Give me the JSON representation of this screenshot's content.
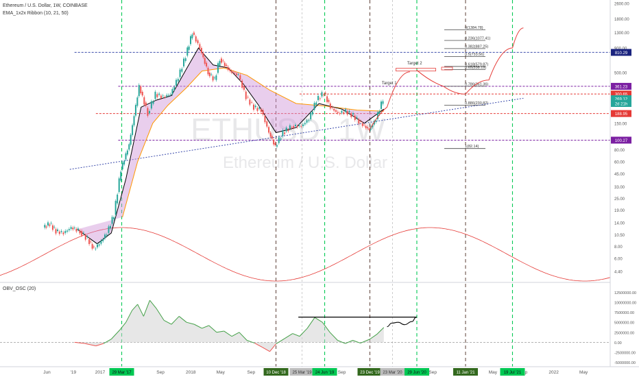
{
  "header": {
    "symbol_title": "Ethereum / U.S. Dollar, 1W, COINBASE",
    "ribbon_label": "EMA_1x2x Ribbon (10, 21, 50)",
    "watermark_ticker": "ETHUSD, 1W",
    "watermark_name": "Ethereum / U.S. Dollar",
    "osc_label": "OBV_OSC (20)"
  },
  "colors": {
    "candle_up": "#26a69a",
    "candle_down": "#ef5350",
    "ema_fast": "#000000",
    "ema_slow": "#ff9800",
    "ribbon_fill": "#ce93d8",
    "blue_line": "#3949ab",
    "red_line": "#e53935",
    "purple_line": "#7b1fa2",
    "green_vline": "#00c853",
    "dark_vline": "#5d4037",
    "sine": "#e53935",
    "osc_line": "#43a047"
  },
  "chart_data": [
    {
      "type": "line",
      "title": "Ethereum / U.S. Dollar, 1W, COINBASE",
      "scale": "log",
      "y_ticks": [
        2600,
        1800,
        1300,
        900,
        500,
        350,
        250,
        150,
        100,
        80,
        60,
        45,
        33,
        25,
        19,
        14,
        10.5,
        8,
        6,
        4.4
      ],
      "y_tick_labels": [
        "2600.00",
        "1800.00",
        "1300.00",
        "900.00",
        "500.00",
        "350.00",
        "250.00",
        "150.00",
        "100.00",
        "80.00",
        "60.00",
        "45.00",
        "33.00",
        "25.00",
        "19.00",
        "14.00",
        "10.50",
        "8.00",
        "6.00",
        "4.40"
      ],
      "x_labels": [
        {
          "label": "Jun",
          "date": "2016-06-01"
        },
        {
          "label": "'19",
          "date": "2016-09-15"
        },
        {
          "label": "2017",
          "date": "2017-01-01"
        },
        {
          "label": "Sep",
          "date": "2017-09-01"
        },
        {
          "label": "2018",
          "date": "2018-01-01"
        },
        {
          "label": "May",
          "date": "2018-05-01"
        },
        {
          "label": "Sep",
          "date": "2018-09-01"
        },
        {
          "label": "Sep",
          "date": "2019-09-01"
        },
        {
          "label": "Sep",
          "date": "2020-09-01"
        },
        {
          "label": "2021",
          "date": "2021-01-01"
        },
        {
          "label": "May",
          "date": "2021-05-01"
        },
        {
          "label": "Sep",
          "date": "2021-09-01"
        },
        {
          "label": "2022",
          "date": "2022-01-01"
        },
        {
          "label": "May",
          "date": "2022-05-01"
        }
      ],
      "date_badges": [
        {
          "label": "29 Mar '17",
          "date": "2017-03-29",
          "color": "#00c853"
        },
        {
          "label": "10 Dec '18",
          "date": "2018-12-10",
          "color": "#33691e"
        },
        {
          "label": "25 Mar '19",
          "date": "2019-03-25",
          "color": "#bdbdbd"
        },
        {
          "label": "24 Jun '19",
          "date": "2019-06-24",
          "color": "#00c853"
        },
        {
          "label": "23 Dec '19",
          "date": "2019-12-23",
          "color": "#33691e"
        },
        {
          "label": "23 Mar '20",
          "date": "2020-03-23",
          "color": "#bdbdbd"
        },
        {
          "label": "29 Jun '20",
          "date": "2020-06-29",
          "color": "#00c853"
        },
        {
          "label": "11 Jan '21",
          "date": "2021-01-11",
          "color": "#33691e"
        },
        {
          "label": "19 Jul '21",
          "date": "2021-07-19",
          "color": "#00c853"
        }
      ],
      "price_badges": [
        {
          "label": "810.29",
          "value": 810.29,
          "color": "#1a237e"
        },
        {
          "label": "361.23",
          "value": 361.23,
          "color": "#7b1fa2"
        },
        {
          "label": "300.65",
          "value": 300.65,
          "color": "#e53935"
        },
        {
          "label": "269.12",
          "value": 269.12,
          "color": "#26a69a"
        },
        {
          "label": "2d 21h",
          "value": 240,
          "color": "#26a69a"
        },
        {
          "label": "188.95",
          "value": 188.95,
          "color": "#e53935"
        },
        {
          "label": "100.27",
          "value": 100.27,
          "color": "#7b1fa2"
        }
      ],
      "horizontal_levels": [
        {
          "value": 810.29,
          "color": "#3949ab",
          "from": "2016-09-20"
        },
        {
          "value": 361.23,
          "color": "#7b1fa2",
          "from": "2017-03-15"
        },
        {
          "value": 300.65,
          "color": "#e53935",
          "from": "2019-03-15"
        },
        {
          "value": 188.95,
          "color": "#e53935",
          "from": "2016-12-15"
        },
        {
          "value": 100.27,
          "color": "#7b1fa2",
          "from": "2017-03-15"
        }
      ],
      "fib_levels": [
        {
          "label": "0(1384.78)",
          "value": 1384.78
        },
        {
          "label": "0.236(1077.41)",
          "value": 1077.41
        },
        {
          "label": "0.382(887.25)",
          "value": 887.25
        },
        {
          "label": "0.5(733.56)",
          "value": 733.56
        },
        {
          "label": "0.618(579.87)",
          "value": 579.87
        },
        {
          "label": "0.65(538.19)",
          "value": 538.19
        },
        {
          "label": "0.786(361.36)",
          "value": 361.36
        },
        {
          "label": "0.886(230.82)",
          "value": 230.82
        },
        {
          "label": "1(82.14)",
          "value": 82.14
        }
      ],
      "annotations": [
        {
          "label": "Target 1",
          "date": "2020-03-10",
          "value": 378
        },
        {
          "label": "Target 2",
          "date": "2020-06-20",
          "value": 610
        }
      ],
      "price": [
        {
          "date": "2016-05-20",
          "value": 12.5
        },
        {
          "date": "2016-06-15",
          "value": 13.8
        },
        {
          "date": "2016-07-10",
          "value": 11.5
        },
        {
          "date": "2016-08-10",
          "value": 11.0
        },
        {
          "date": "2016-09-10",
          "value": 12.5
        },
        {
          "date": "2016-10-15",
          "value": 11.5
        },
        {
          "date": "2016-11-15",
          "value": 9.5
        },
        {
          "date": "2016-12-10",
          "value": 7.5
        },
        {
          "date": "2017-01-01",
          "value": 8.5
        },
        {
          "date": "2017-02-01",
          "value": 11.0
        },
        {
          "date": "2017-03-01",
          "value": 17.0
        },
        {
          "date": "2017-03-29",
          "value": 50.0
        },
        {
          "date": "2017-05-01",
          "value": 90.0
        },
        {
          "date": "2017-06-10",
          "value": 360.0
        },
        {
          "date": "2017-07-15",
          "value": 190.0
        },
        {
          "date": "2017-08-15",
          "value": 300.0
        },
        {
          "date": "2017-09-15",
          "value": 280.0
        },
        {
          "date": "2017-10-15",
          "value": 300.0
        },
        {
          "date": "2017-11-15",
          "value": 450.0
        },
        {
          "date": "2017-12-15",
          "value": 750.0
        },
        {
          "date": "2018-01-10",
          "value": 1300.0
        },
        {
          "date": "2018-02-10",
          "value": 900.0
        },
        {
          "date": "2018-03-15",
          "value": 500.0
        },
        {
          "date": "2018-04-10",
          "value": 420.0
        },
        {
          "date": "2018-05-01",
          "value": 700.0
        },
        {
          "date": "2018-06-10",
          "value": 520.0
        },
        {
          "date": "2018-07-15",
          "value": 470.0
        },
        {
          "date": "2018-08-15",
          "value": 280.0
        },
        {
          "date": "2018-09-15",
          "value": 220.0
        },
        {
          "date": "2018-10-15",
          "value": 205.0
        },
        {
          "date": "2018-11-15",
          "value": 120.0
        },
        {
          "date": "2018-12-10",
          "value": 86.0
        },
        {
          "date": "2019-01-10",
          "value": 120.0
        },
        {
          "date": "2019-02-15",
          "value": 140.0
        },
        {
          "date": "2019-03-25",
          "value": 140.0
        },
        {
          "date": "2019-04-25",
          "value": 165.0
        },
        {
          "date": "2019-05-25",
          "value": 260.0
        },
        {
          "date": "2019-06-24",
          "value": 310.0
        },
        {
          "date": "2019-07-20",
          "value": 220.0
        },
        {
          "date": "2019-08-20",
          "value": 190.0
        },
        {
          "date": "2019-09-20",
          "value": 200.0
        },
        {
          "date": "2019-10-20",
          "value": 180.0
        },
        {
          "date": "2019-11-20",
          "value": 150.0
        },
        {
          "date": "2019-12-23",
          "value": 128.0
        },
        {
          "date": "2020-01-20",
          "value": 165.0
        },
        {
          "date": "2020-02-17",
          "value": 269.12
        }
      ],
      "ema_fast": [
        {
          "date": "2016-10-01",
          "value": 12.0
        },
        {
          "date": "2016-12-20",
          "value": 8.5
        },
        {
          "date": "2017-02-15",
          "value": 11.0
        },
        {
          "date": "2017-04-15",
          "value": 40.0
        },
        {
          "date": "2017-06-15",
          "value": 220.0
        },
        {
          "date": "2017-08-15",
          "value": 260.0
        },
        {
          "date": "2017-10-15",
          "value": 290.0
        },
        {
          "date": "2017-12-15",
          "value": 550.0
        },
        {
          "date": "2018-02-01",
          "value": 900.0
        },
        {
          "date": "2018-04-01",
          "value": 600.0
        },
        {
          "date": "2018-06-01",
          "value": 560.0
        },
        {
          "date": "2018-08-01",
          "value": 380.0
        },
        {
          "date": "2018-10-01",
          "value": 230.0
        },
        {
          "date": "2018-12-10",
          "value": 120.0
        },
        {
          "date": "2019-03-01",
          "value": 135.0
        },
        {
          "date": "2019-06-01",
          "value": 240.0
        },
        {
          "date": "2019-09-01",
          "value": 210.0
        },
        {
          "date": "2019-12-01",
          "value": 150.0
        },
        {
          "date": "2020-02-17",
          "value": 210.0
        }
      ],
      "ema_slow": [
        {
          "date": "2017-04-01",
          "value": 16.0
        },
        {
          "date": "2017-06-01",
          "value": 60.0
        },
        {
          "date": "2017-08-01",
          "value": 150.0
        },
        {
          "date": "2017-10-01",
          "value": 230.0
        },
        {
          "date": "2017-12-15",
          "value": 350.0
        },
        {
          "date": "2018-02-15",
          "value": 520.0
        },
        {
          "date": "2018-05-15",
          "value": 560.0
        },
        {
          "date": "2018-08-15",
          "value": 470.0
        },
        {
          "date": "2018-11-15",
          "value": 330.0
        },
        {
          "date": "2019-03-01",
          "value": 240.0
        },
        {
          "date": "2019-07-01",
          "value": 225.0
        },
        {
          "date": "2019-11-01",
          "value": 205.0
        },
        {
          "date": "2020-02-17",
          "value": 200.0
        }
      ],
      "trendline": [
        {
          "date": "2016-09-01",
          "value": 50.0
        },
        {
          "date": "2021-09-01",
          "value": 272.0
        }
      ],
      "projection_curve": [
        {
          "date": "2019-12-23",
          "value": 130.0
        },
        {
          "date": "2020-03-01",
          "value": 220.0
        },
        {
          "date": "2020-06-01",
          "value": 510.0
        }
      ],
      "projection_curve_2": [
        {
          "date": "2020-06-29",
          "value": 530.0
        },
        {
          "date": "2020-10-15",
          "value": 360.0
        },
        {
          "date": "2021-01-11",
          "value": 300.0
        },
        {
          "date": "2021-04-15",
          "value": 420.0
        },
        {
          "date": "2021-07-19",
          "value": 900.0
        },
        {
          "date": "2021-09-01",
          "value": 1450.0
        }
      ]
    },
    {
      "type": "area",
      "title": "OBV_OSC (20)",
      "y_ticks": [
        12500000,
        10000000,
        7500000,
        5000000,
        2500000,
        0,
        -2500000,
        -5000000
      ],
      "y_tick_labels": [
        "12500000.00",
        "10000000.00",
        "7500000.00",
        "5000000.00",
        "2500000.00",
        "0.00",
        "-2500000.00",
        "-5000000.00"
      ],
      "ylim": [
        -6000000,
        13000000
      ],
      "resistance_line": {
        "from": "2019-03-10",
        "to": "2020-06-29",
        "value": 6300000
      },
      "series": [
        {
          "date": "2016-09-20",
          "value": 0
        },
        {
          "date": "2016-11-01",
          "value": -300000
        },
        {
          "date": "2016-12-15",
          "value": -900000
        },
        {
          "date": "2017-01-15",
          "value": -300000
        },
        {
          "date": "2017-02-15",
          "value": 800000
        },
        {
          "date": "2017-03-20",
          "value": 3000000
        },
        {
          "date": "2017-04-15",
          "value": 5000000
        },
        {
          "date": "2017-05-10",
          "value": 8000000
        },
        {
          "date": "2017-06-01",
          "value": 9500000
        },
        {
          "date": "2017-06-25",
          "value": 6500000
        },
        {
          "date": "2017-07-20",
          "value": 10500000
        },
        {
          "date": "2017-08-15",
          "value": 8500000
        },
        {
          "date": "2017-09-15",
          "value": 5500000
        },
        {
          "date": "2017-10-15",
          "value": 4500000
        },
        {
          "date": "2017-11-15",
          "value": 6500000
        },
        {
          "date": "2017-12-15",
          "value": 5000000
        },
        {
          "date": "2018-01-15",
          "value": 4500000
        },
        {
          "date": "2018-02-15",
          "value": 3500000
        },
        {
          "date": "2018-03-15",
          "value": 4200000
        },
        {
          "date": "2018-04-15",
          "value": 2500000
        },
        {
          "date": "2018-05-15",
          "value": 2800000
        },
        {
          "date": "2018-06-15",
          "value": 1500000
        },
        {
          "date": "2018-07-15",
          "value": 2500000
        },
        {
          "date": "2018-08-15",
          "value": 500000
        },
        {
          "date": "2018-09-15",
          "value": -200000
        },
        {
          "date": "2018-10-15",
          "value": -1200000
        },
        {
          "date": "2018-11-15",
          "value": -2300000
        },
        {
          "date": "2018-12-10",
          "value": -400000
        },
        {
          "date": "2019-01-15",
          "value": 1000000
        },
        {
          "date": "2019-02-15",
          "value": 2200000
        },
        {
          "date": "2019-03-15",
          "value": 1500000
        },
        {
          "date": "2019-04-15",
          "value": 3500000
        },
        {
          "date": "2019-05-15",
          "value": 6200000
        },
        {
          "date": "2019-06-15",
          "value": 5000000
        },
        {
          "date": "2019-07-15",
          "value": 2500000
        },
        {
          "date": "2019-08-15",
          "value": 500000
        },
        {
          "date": "2019-09-15",
          "value": -300000
        },
        {
          "date": "2019-10-15",
          "value": 500000
        },
        {
          "date": "2019-11-15",
          "value": -200000
        },
        {
          "date": "2019-12-23",
          "value": 800000
        },
        {
          "date": "2020-01-20",
          "value": 2000000
        },
        {
          "date": "2020-02-17",
          "value": 3700000
        }
      ],
      "projection": [
        {
          "date": "2020-03-01",
          "value": 3900000
        },
        {
          "date": "2020-03-20",
          "value": 4800000
        },
        {
          "date": "2020-04-15",
          "value": 5000000
        },
        {
          "date": "2020-05-10",
          "value": 4400000
        },
        {
          "date": "2020-06-10",
          "value": 5200000
        },
        {
          "date": "2020-06-25",
          "value": 6200000
        }
      ]
    }
  ]
}
